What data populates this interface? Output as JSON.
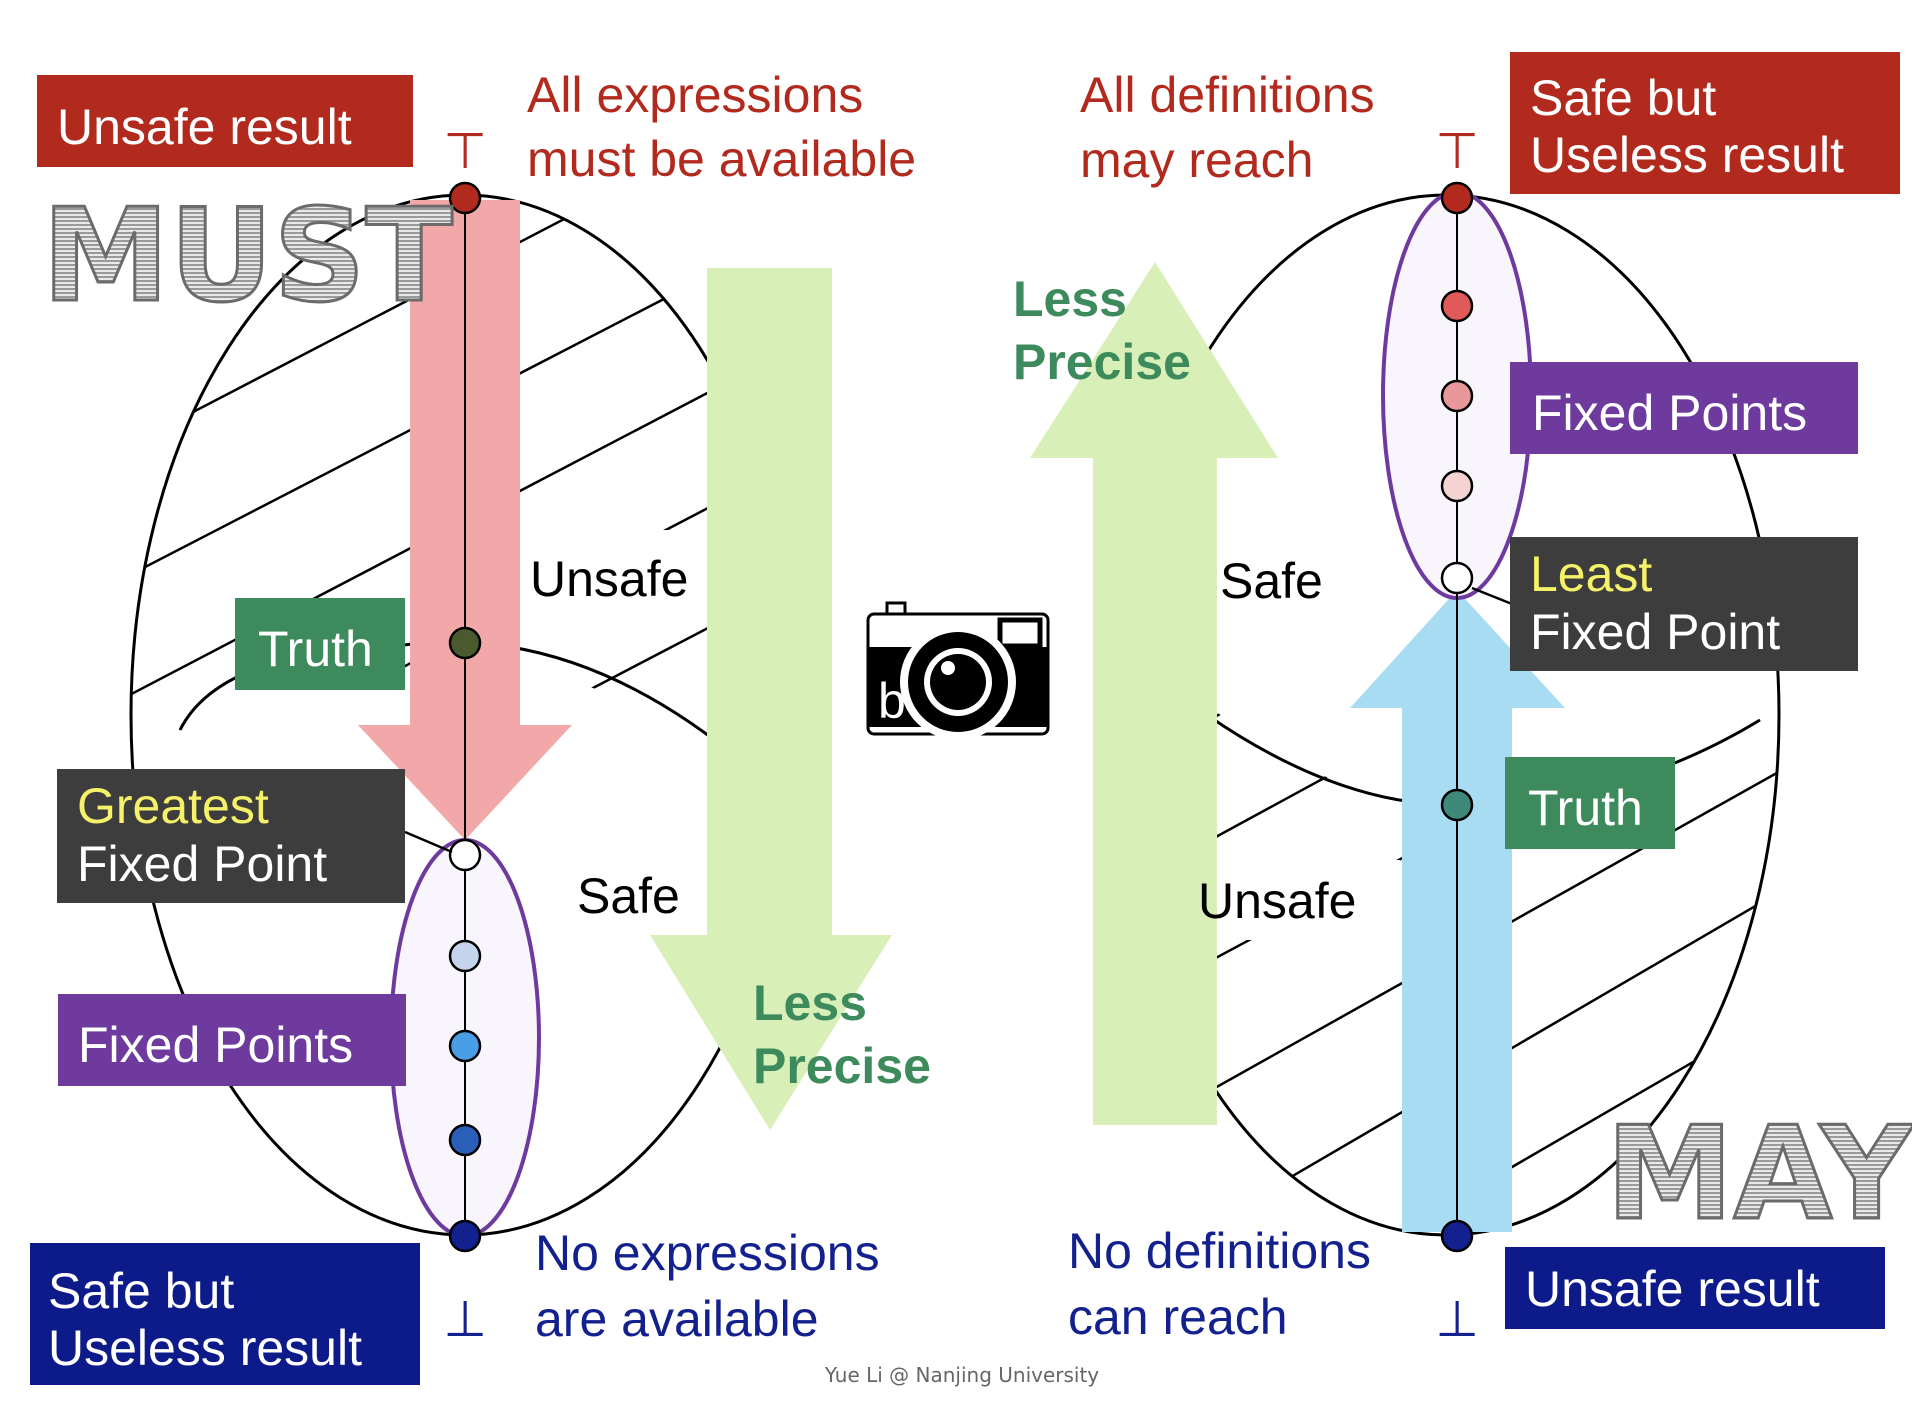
{
  "colors": {
    "red_box": "#B22A1E",
    "red_text": "#B22A1E",
    "blue_box": "#0D1A8A",
    "blue_text": "#13218F",
    "green_box": "#3D8A5C",
    "green_text": "#3D8A5C",
    "purple_box": "#6E3A9E",
    "dark_box": "#3D3D3D",
    "yellow": "#F5F26A",
    "red_arrow": "#F2A8A8",
    "green_arrow": "#D8F0B8",
    "blue_arrow": "#A8DCF2",
    "ellipse_purple": "#6E3A9E"
  },
  "must": {
    "watermark": "MUST",
    "top_box": "Unsafe result",
    "top_note": [
      "All expressions",
      "must be available"
    ],
    "top_symbol": "⊤",
    "bottom_symbol": "⊥",
    "bottom_box": [
      "Safe but",
      "Useless result"
    ],
    "bottom_note": [
      "No expressions",
      "are available"
    ],
    "region_unsafe": "Unsafe",
    "region_safe": "Safe",
    "truth": "Truth",
    "gfp_line1": "Greatest",
    "gfp_line2": "Fixed Point",
    "fixed_points": "Fixed Points",
    "less_precise": [
      "Less",
      "Precise"
    ]
  },
  "may": {
    "watermark": "MAY",
    "top_box": [
      "Safe but",
      "Useless result"
    ],
    "top_note": [
      "All definitions",
      "may reach"
    ],
    "top_symbol": "⊤",
    "bottom_symbol": "⊥",
    "bottom_box": "Unsafe result",
    "bottom_note": [
      "No definitions",
      "can reach"
    ],
    "region_safe": "Safe",
    "region_unsafe": "Unsafe",
    "truth": "Truth",
    "lfp_line1": "Least",
    "lfp_line2": "Fixed Point",
    "fixed_points": "Fixed Points",
    "less_precise": [
      "Less",
      "Precise"
    ]
  },
  "credit": "Yue Li @ Nanjing University",
  "icon": "camera-icon"
}
